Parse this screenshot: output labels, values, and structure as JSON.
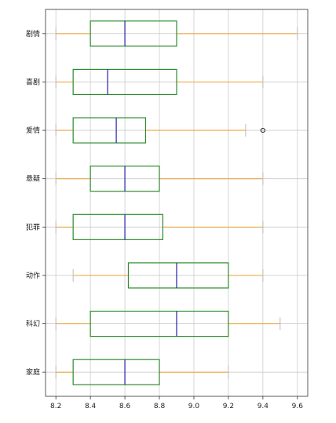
{
  "chart_data": {
    "type": "box",
    "orientation": "horizontal",
    "title": "",
    "xlabel": "",
    "ylabel": "",
    "xlim": [
      8.14,
      9.66
    ],
    "xticks": [
      8.2,
      8.4,
      8.6,
      8.8,
      9.0,
      9.2,
      9.4,
      9.6
    ],
    "xtick_labels": [
      "8.2",
      "8.4",
      "8.6",
      "8.8",
      "9.0",
      "9.2",
      "9.4",
      "9.6"
    ],
    "grid": true,
    "colors": {
      "box": "#2e8b2e",
      "median": "#2222aa",
      "whisker": "#f0a030",
      "flier": "#222222",
      "grid": "#cccccc",
      "axis": "#333333"
    },
    "categories": [
      "剧情",
      "喜剧",
      "爱情",
      "悬疑",
      "犯罪",
      "动作",
      "科幻",
      "家庭"
    ],
    "boxes": [
      {
        "category": "剧情",
        "min": 8.2,
        "q1": 8.4,
        "median": 8.6,
        "q3": 8.9,
        "max": 9.6,
        "fliers": []
      },
      {
        "category": "喜剧",
        "min": 8.2,
        "q1": 8.3,
        "median": 8.5,
        "q3": 8.9,
        "max": 9.4,
        "fliers": []
      },
      {
        "category": "爱情",
        "min": 8.2,
        "q1": 8.3,
        "median": 8.55,
        "q3": 8.72,
        "max": 9.3,
        "fliers": [
          9.4
        ]
      },
      {
        "category": "悬疑",
        "min": 8.2,
        "q1": 8.4,
        "median": 8.6,
        "q3": 8.8,
        "max": 9.4,
        "fliers": []
      },
      {
        "category": "犯罪",
        "min": 8.2,
        "q1": 8.3,
        "median": 8.6,
        "q3": 8.82,
        "max": 9.4,
        "fliers": []
      },
      {
        "category": "动作",
        "min": 8.3,
        "q1": 8.62,
        "median": 8.9,
        "q3": 9.2,
        "max": 9.4,
        "fliers": []
      },
      {
        "category": "科幻",
        "min": 8.2,
        "q1": 8.4,
        "median": 8.9,
        "q3": 9.2,
        "max": 9.5,
        "fliers": []
      },
      {
        "category": "家庭",
        "min": 8.2,
        "q1": 8.3,
        "median": 8.6,
        "q3": 8.8,
        "max": 9.2,
        "fliers": []
      }
    ]
  }
}
